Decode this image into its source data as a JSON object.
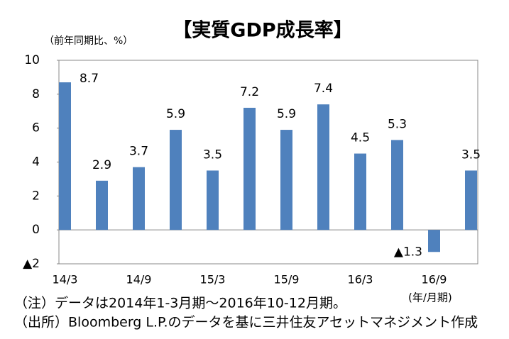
{
  "chart_data": {
    "type": "bar",
    "title": "【実質GDP成長率】",
    "y_axis_label": "（前年同期比、%）",
    "x_axis_label": "(年/月期)",
    "categories": [
      "14/3",
      null,
      "14/9",
      null,
      "15/3",
      null,
      "15/9",
      null,
      "16/3",
      null,
      "16/9",
      null
    ],
    "values": [
      8.7,
      2.9,
      3.7,
      5.9,
      3.5,
      7.2,
      5.9,
      7.4,
      4.5,
      5.3,
      -1.3,
      3.5
    ],
    "value_labels": [
      "8.7",
      "2.9",
      "3.7",
      "5.9",
      "3.5",
      "7.2",
      "5.9",
      "7.4",
      "4.5",
      "5.3",
      "▲1.3",
      "3.5"
    ],
    "color": "#4f81bd",
    "negative_label_color": "#ff0000",
    "ylim": [
      -2,
      10
    ],
    "yticks": [
      {
        "value": -2,
        "label": "▲2"
      },
      0,
      2,
      4,
      6,
      8,
      10
    ],
    "notes": [
      "（注）データは2014年1-3月期～2016年10-12月期。",
      "（出所）Bloomberg L.P.のデータを基に三井住友アセットマネジメント作成"
    ]
  }
}
